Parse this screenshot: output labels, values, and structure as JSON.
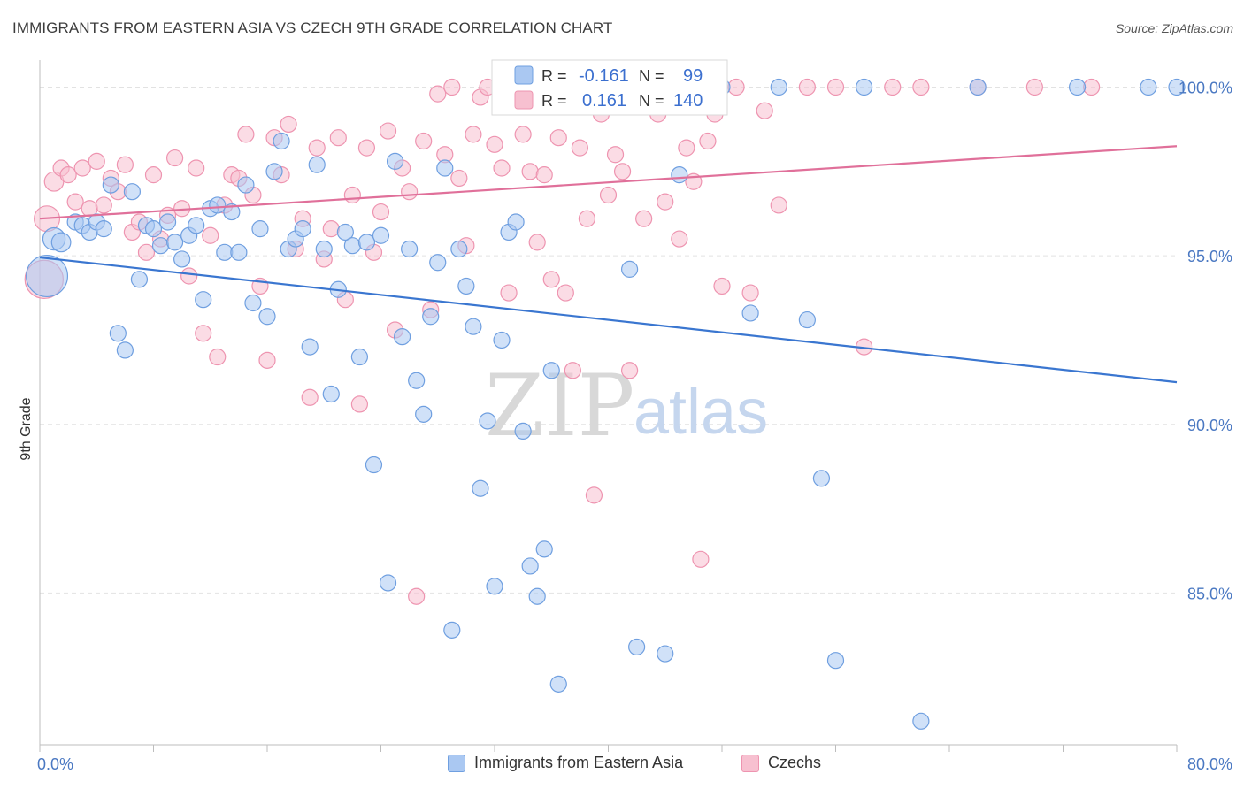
{
  "title": "IMMIGRANTS FROM EASTERN ASIA VS CZECH 9TH GRADE CORRELATION CHART",
  "source": "Source: ZipAtlas.com",
  "watermark": {
    "zip": "ZIP",
    "atlas": "atlas"
  },
  "legend": {
    "r_label": "R =",
    "n_label": "N =",
    "series": [
      {
        "r": "-0.161",
        "n": "99"
      },
      {
        "r": "0.161",
        "n": "140"
      }
    ]
  },
  "bottom_legend": [
    "Immigrants from Eastern Asia",
    "Czechs"
  ],
  "chart_data": {
    "type": "scatter",
    "ylabel": "9th Grade",
    "xlim": [
      0,
      80
    ],
    "ylim": [
      80.5,
      100.8
    ],
    "x_tick_labels": [
      "0.0%",
      "80.0%"
    ],
    "y_ticks": [
      85,
      90,
      95,
      100
    ],
    "y_tick_labels": [
      "85.0%",
      "90.0%",
      "95.0%",
      "100.0%"
    ],
    "grid": "horizontal dashed",
    "legend_position": "top-center",
    "colors": {
      "blue_fill": "#aac8f2",
      "blue_stroke": "#6f9fe0",
      "blue_line": "#3a76d0",
      "pink_fill": "#f7c0d0",
      "pink_stroke": "#ee94b0",
      "pink_line": "#e0709a"
    },
    "series": [
      {
        "key": "blue",
        "trend": {
          "x": [
            0,
            80
          ],
          "y": [
            94.95,
            91.25
          ]
        },
        "points": [
          [
            0.5,
            94.4,
            26
          ],
          [
            1,
            95.5,
            14
          ],
          [
            1.5,
            95.4,
            12
          ],
          [
            2.5,
            96,
            10
          ],
          [
            3,
            95.9,
            10
          ],
          [
            3.5,
            95.7,
            10
          ],
          [
            4,
            96,
            10
          ],
          [
            4.5,
            95.8,
            10
          ],
          [
            5,
            97.1,
            10
          ],
          [
            5.5,
            92.7,
            10
          ],
          [
            6,
            92.2,
            10
          ],
          [
            6.5,
            96.9,
            10
          ],
          [
            7,
            94.3,
            10
          ],
          [
            7.5,
            95.9,
            10
          ],
          [
            8,
            95.8,
            10
          ],
          [
            8.5,
            95.3,
            10
          ],
          [
            9,
            96,
            10
          ],
          [
            9.5,
            95.4,
            10
          ],
          [
            10,
            94.9,
            10
          ],
          [
            10.5,
            95.6,
            10
          ],
          [
            11,
            95.9,
            10
          ],
          [
            11.5,
            93.7,
            10
          ],
          [
            12,
            96.4,
            10
          ],
          [
            12.5,
            96.5,
            10
          ],
          [
            13,
            95.1,
            10
          ],
          [
            13.5,
            96.3,
            10
          ],
          [
            14,
            95.1,
            10
          ],
          [
            14.5,
            97.1,
            10
          ],
          [
            15,
            93.6,
            10
          ],
          [
            15.5,
            95.8,
            10
          ],
          [
            16,
            93.2,
            10
          ],
          [
            16.5,
            97.5,
            10
          ],
          [
            17,
            98.4,
            10
          ],
          [
            17.5,
            95.2,
            10
          ],
          [
            18,
            95.5,
            10
          ],
          [
            18.5,
            95.8,
            10
          ],
          [
            19,
            92.3,
            10
          ],
          [
            19.5,
            97.7,
            10
          ],
          [
            20,
            95.2,
            10
          ],
          [
            20.5,
            90.9,
            10
          ],
          [
            21,
            94,
            10
          ],
          [
            21.5,
            95.7,
            10
          ],
          [
            22,
            95.3,
            10
          ],
          [
            22.5,
            92.0,
            10
          ],
          [
            23,
            95.4,
            10
          ],
          [
            23.5,
            88.8,
            10
          ],
          [
            24,
            95.6,
            10
          ],
          [
            24.5,
            85.3,
            10
          ],
          [
            25,
            97.8,
            10
          ],
          [
            25.5,
            92.6,
            10
          ],
          [
            26,
            95.2,
            10
          ],
          [
            26.5,
            91.3,
            10
          ],
          [
            27,
            90.3,
            10
          ],
          [
            27.5,
            93.2,
            10
          ],
          [
            28,
            94.8,
            10
          ],
          [
            28.5,
            97.6,
            10
          ],
          [
            29,
            83.9,
            10
          ],
          [
            29.5,
            95.2,
            10
          ],
          [
            30,
            94.1,
            10
          ],
          [
            30.5,
            92.9,
            10
          ],
          [
            31,
            88.1,
            10
          ],
          [
            31.5,
            90.1,
            10
          ],
          [
            32,
            85.2,
            10
          ],
          [
            32.5,
            92.5,
            10
          ],
          [
            33,
            95.7,
            10
          ],
          [
            33.5,
            96,
            10
          ],
          [
            34,
            89.8,
            10
          ],
          [
            34.5,
            85.8,
            10
          ],
          [
            35,
            84.9,
            10
          ],
          [
            35.5,
            86.3,
            10
          ],
          [
            36,
            91.6,
            10
          ],
          [
            36.5,
            82.3,
            10
          ],
          [
            38,
            100,
            10
          ],
          [
            41,
            100,
            10
          ],
          [
            41.5,
            94.6,
            10
          ],
          [
            42,
            83.4,
            10
          ],
          [
            44,
            83.2,
            10
          ],
          [
            45,
            97.4,
            10
          ],
          [
            48,
            100,
            10
          ],
          [
            50,
            93.3,
            10
          ],
          [
            52,
            100,
            10
          ],
          [
            54,
            93.1,
            10
          ],
          [
            55,
            88.4,
            10
          ],
          [
            56,
            83,
            10
          ],
          [
            58,
            100,
            10
          ],
          [
            62,
            81.2,
            10
          ],
          [
            66,
            100,
            10
          ],
          [
            73,
            100,
            10
          ],
          [
            78,
            100,
            10
          ],
          [
            80,
            100,
            10
          ]
        ]
      },
      {
        "key": "pink",
        "trend": {
          "x": [
            0,
            80
          ],
          "y": [
            96.1,
            98.25
          ]
        },
        "points": [
          [
            0.3,
            94.3,
            24
          ],
          [
            0.5,
            96.1,
            16
          ],
          [
            1,
            97.2,
            12
          ],
          [
            1.5,
            97.6,
            10
          ],
          [
            2,
            97.4,
            10
          ],
          [
            2.5,
            96.6,
            10
          ],
          [
            3,
            97.6,
            10
          ],
          [
            3.5,
            96.4,
            10
          ],
          [
            4,
            97.8,
            10
          ],
          [
            4.5,
            96.5,
            10
          ],
          [
            5,
            97.3,
            10
          ],
          [
            5.5,
            96.9,
            10
          ],
          [
            6,
            97.7,
            10
          ],
          [
            6.5,
            95.7,
            10
          ],
          [
            7,
            96,
            10
          ],
          [
            7.5,
            95.1,
            10
          ],
          [
            8,
            97.4,
            10
          ],
          [
            8.5,
            95.5,
            10
          ],
          [
            9,
            96.2,
            10
          ],
          [
            9.5,
            97.9,
            10
          ],
          [
            10,
            96.4,
            10
          ],
          [
            10.5,
            94.4,
            10
          ],
          [
            11,
            97.6,
            10
          ],
          [
            11.5,
            92.7,
            10
          ],
          [
            12,
            95.6,
            10
          ],
          [
            12.5,
            92.0,
            10
          ],
          [
            13,
            96.5,
            10
          ],
          [
            13.5,
            97.4,
            10
          ],
          [
            14,
            97.3,
            10
          ],
          [
            14.5,
            98.6,
            10
          ],
          [
            15,
            96.8,
            10
          ],
          [
            15.5,
            94.1,
            10
          ],
          [
            16,
            91.9,
            10
          ],
          [
            16.5,
            98.5,
            10
          ],
          [
            17,
            97.4,
            10
          ],
          [
            17.5,
            98.9,
            10
          ],
          [
            18,
            95.2,
            10
          ],
          [
            18.5,
            96.1,
            10
          ],
          [
            19,
            90.8,
            10
          ],
          [
            19.5,
            98.2,
            10
          ],
          [
            20,
            94.9,
            10
          ],
          [
            20.5,
            95.8,
            10
          ],
          [
            21,
            98.5,
            10
          ],
          [
            21.5,
            93.7,
            10
          ],
          [
            22,
            96.8,
            10
          ],
          [
            22.5,
            90.6,
            10
          ],
          [
            23,
            98.2,
            10
          ],
          [
            23.5,
            95.1,
            10
          ],
          [
            24,
            96.3,
            10
          ],
          [
            24.5,
            98.7,
            10
          ],
          [
            25,
            92.8,
            10
          ],
          [
            25.5,
            97.6,
            10
          ],
          [
            26,
            96.9,
            10
          ],
          [
            26.5,
            84.9,
            10
          ],
          [
            27,
            98.4,
            10
          ],
          [
            27.5,
            93.4,
            10
          ],
          [
            28,
            99.8,
            10
          ],
          [
            28.5,
            98,
            10
          ],
          [
            29,
            100,
            10
          ],
          [
            29.5,
            97.3,
            10
          ],
          [
            30,
            95.3,
            10
          ],
          [
            30.5,
            98.6,
            10
          ],
          [
            31,
            99.7,
            10
          ],
          [
            31.5,
            100,
            10
          ],
          [
            32,
            98.3,
            10
          ],
          [
            32.5,
            97.6,
            10
          ],
          [
            33,
            93.9,
            10
          ],
          [
            33.5,
            100,
            10
          ],
          [
            34,
            98.6,
            10
          ],
          [
            34.5,
            97.5,
            10
          ],
          [
            35,
            95.4,
            10
          ],
          [
            35.5,
            97.4,
            10
          ],
          [
            36,
            94.3,
            10
          ],
          [
            36.5,
            98.5,
            10
          ],
          [
            37,
            93.9,
            10
          ],
          [
            37.5,
            91.6,
            10
          ],
          [
            38,
            98.2,
            10
          ],
          [
            38.5,
            96.1,
            10
          ],
          [
            39,
            87.9,
            10
          ],
          [
            39.5,
            99.2,
            10
          ],
          [
            40,
            96.8,
            10
          ],
          [
            40.5,
            98,
            10
          ],
          [
            41,
            97.5,
            10
          ],
          [
            41.5,
            91.6,
            10
          ],
          [
            42,
            100,
            10
          ],
          [
            42.5,
            96.1,
            10
          ],
          [
            43,
            100,
            10
          ],
          [
            43.5,
            99.2,
            10
          ],
          [
            44,
            96.6,
            10
          ],
          [
            44.5,
            100,
            10
          ],
          [
            45,
            95.5,
            10
          ],
          [
            45.5,
            98.2,
            10
          ],
          [
            46,
            97.2,
            10
          ],
          [
            46.5,
            86,
            10
          ],
          [
            47,
            98.4,
            10
          ],
          [
            47.5,
            99.2,
            10
          ],
          [
            48,
            94.1,
            10
          ],
          [
            49,
            100,
            10
          ],
          [
            50,
            93.9,
            10
          ],
          [
            51,
            99.3,
            10
          ],
          [
            52,
            96.5,
            10
          ],
          [
            54,
            100,
            10
          ],
          [
            56,
            100,
            10
          ],
          [
            58,
            92.3,
            10
          ],
          [
            60,
            100,
            10
          ],
          [
            62,
            100,
            10
          ],
          [
            66,
            100,
            10
          ],
          [
            70,
            100,
            10
          ],
          [
            74,
            100,
            10
          ]
        ]
      }
    ]
  }
}
